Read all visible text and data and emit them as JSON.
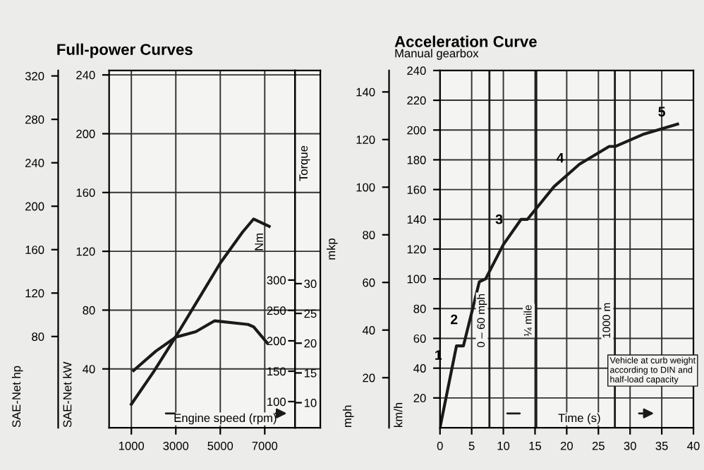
{
  "chart_data": [
    {
      "type": "line",
      "title": "Full-power Curves",
      "xlabel": "Engine speed (rpm)",
      "ylabel": "SAE-Net kW",
      "y2label": "SAE-Net hp",
      "xlim": [
        0,
        9500
      ],
      "xticks": [
        1000,
        3000,
        5000,
        7000
      ],
      "ylim": [
        0,
        243
      ],
      "yticks": [
        40,
        80,
        120,
        160,
        200,
        240
      ],
      "y2lim": [
        -4,
        325
      ],
      "y2ticks": [
        80,
        120,
        160,
        200,
        240,
        280,
        320
      ],
      "grid": true,
      "marker": "none",
      "line_style": "solid",
      "series": [
        {
          "color": "#1a1a1a",
          "x": [
            1000,
            2000,
            3000,
            4000,
            5000,
            6000,
            6500,
            7200
          ],
          "values": [
            16,
            38,
            62,
            87,
            112,
            133,
            142,
            137
          ]
        }
      ]
    },
    {
      "type": "line",
      "ylabel": "Nm",
      "y2label": "mkp",
      "tick_labels": "y",
      "xlim": [
        0,
        9500
      ],
      "ylim": [
        57,
        645
      ],
      "yticks": [
        100,
        150,
        200,
        250,
        300
      ],
      "y2lim": [
        5.8,
        65.8
      ],
      "y2ticks": [
        10,
        15,
        20,
        25,
        30
      ],
      "marker": "none",
      "line_style": "solid",
      "series": [
        {
          "color": "#1a1a1a",
          "x": [
            1100,
            2100,
            3000,
            3900,
            4750,
            6250,
            6500,
            7100
          ],
          "values": [
            151,
            183,
            206,
            215,
            233,
            227,
            223,
            197
          ]
        }
      ],
      "annotations": [
        "Torque"
      ]
    },
    {
      "type": "line",
      "title": "Acceleration Curve",
      "subtitle": "Manual gearbox",
      "xlabel": "Time (s)",
      "ylabel": "km/h",
      "y2label": "mph",
      "xlim": [
        0,
        40
      ],
      "xticks": [
        0,
        5,
        10,
        15,
        20,
        25,
        30,
        35,
        40
      ],
      "ylim": [
        0,
        240
      ],
      "yticks": [
        20,
        40,
        60,
        80,
        100,
        120,
        140,
        160,
        180,
        200,
        220,
        240
      ],
      "y2lim": [
        -1,
        149
      ],
      "y2ticks": [
        20,
        40,
        60,
        80,
        100,
        120,
        140
      ],
      "grid": true,
      "marker": "none",
      "line_style": "solid",
      "series": [
        {
          "color": "#1a1a1a",
          "x": [
            0,
            2.6,
            3.7,
            6.2,
            7.2,
            10,
            12.8,
            13.8,
            18,
            22,
            26.7,
            27.7,
            32,
            37.5
          ],
          "values": [
            0,
            55,
            55,
            98,
            100,
            123,
            140,
            140,
            162,
            177,
            189,
            189,
            197,
            204
          ]
        }
      ],
      "ref_lines": [
        {
          "axis": "x",
          "value": 7.8,
          "label": "0 – 60 mph"
        },
        {
          "axis": "x",
          "value": 15.2,
          "label": "¼ mile"
        },
        {
          "axis": "x",
          "value": 27.6,
          "label": "1000 m"
        }
      ],
      "annotations": [
        {
          "text": "1",
          "x": 2.2,
          "y": 48
        },
        {
          "text": "2",
          "x": 4.7,
          "y": 72
        },
        {
          "text": "3",
          "x": 11.8,
          "y": 134
        },
        {
          "text": "4",
          "x": 20.2,
          "y": 170
        },
        {
          "text": "5",
          "x": 35,
          "y": 201
        },
        "Vehicle at curb weight according to DIN and half-load capacity"
      ]
    }
  ]
}
